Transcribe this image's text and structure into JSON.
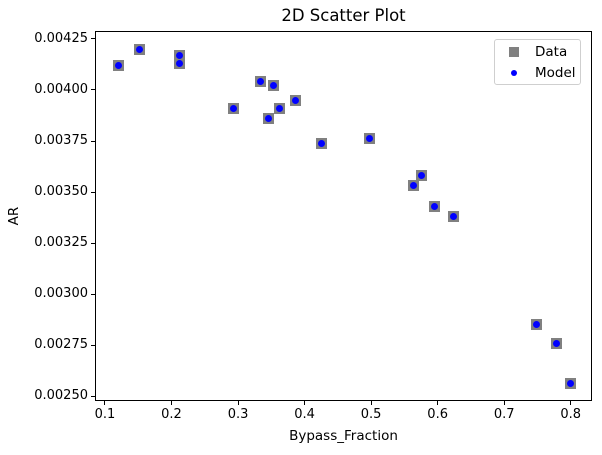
{
  "figure": {
    "title": "2D Scatter Plot",
    "xlabel": "Bypass_Fraction",
    "ylabel": "AR"
  },
  "legend": {
    "position": "upper right",
    "items": [
      {
        "label": "Data",
        "marker": "square",
        "color": "#808080"
      },
      {
        "label": "Model",
        "marker": "circle",
        "color": "#0000ff"
      }
    ]
  },
  "chart_data": {
    "type": "scatter",
    "title": "2D Scatter Plot",
    "xlabel": "Bypass_Fraction",
    "ylabel": "AR",
    "grid": false,
    "legend_position": "upper right",
    "xlim": [
      0.085,
      0.832
    ],
    "ylim": [
      0.002476,
      0.004289
    ],
    "xticks": [
      0.1,
      0.2,
      0.3,
      0.4,
      0.5,
      0.6,
      0.7,
      0.8
    ],
    "xtick_labels": [
      "0.1",
      "0.2",
      "0.3",
      "0.4",
      "0.5",
      "0.6",
      "0.7",
      "0.8"
    ],
    "yticks": [
      0.0025,
      0.00275,
      0.003,
      0.00325,
      0.0035,
      0.00375,
      0.004,
      0.00425
    ],
    "ytick_labels": [
      "0.00250",
      "0.00275",
      "0.00300",
      "0.00325",
      "0.00350",
      "0.00375",
      "0.00400",
      "0.00425"
    ],
    "series": [
      {
        "name": "Data",
        "marker": "square",
        "color": "#808080",
        "size": 11,
        "points": [
          [
            0.121,
            0.00412
          ],
          [
            0.152,
            0.0042
          ],
          [
            0.212,
            0.00417
          ],
          [
            0.212,
            0.00413
          ],
          [
            0.293,
            0.00391
          ],
          [
            0.334,
            0.00404
          ],
          [
            0.346,
            0.00386
          ],
          [
            0.354,
            0.00402
          ],
          [
            0.362,
            0.00391
          ],
          [
            0.386,
            0.00395
          ],
          [
            0.425,
            0.00374
          ],
          [
            0.497,
            0.00376
          ],
          [
            0.564,
            0.00353
          ],
          [
            0.576,
            0.00358
          ],
          [
            0.596,
            0.00343
          ],
          [
            0.624,
            0.00338
          ],
          [
            0.748,
            0.00285
          ],
          [
            0.779,
            0.00276
          ],
          [
            0.8,
            0.00256
          ]
        ]
      },
      {
        "name": "Model",
        "marker": "circle",
        "color": "#0000ff",
        "size": 7,
        "points": [
          [
            0.121,
            0.00412
          ],
          [
            0.152,
            0.0042
          ],
          [
            0.212,
            0.00417
          ],
          [
            0.212,
            0.00413
          ],
          [
            0.293,
            0.00391
          ],
          [
            0.334,
            0.00404
          ],
          [
            0.346,
            0.00386
          ],
          [
            0.354,
            0.00402
          ],
          [
            0.362,
            0.00391
          ],
          [
            0.386,
            0.00395
          ],
          [
            0.425,
            0.00374
          ],
          [
            0.497,
            0.00376
          ],
          [
            0.564,
            0.00353
          ],
          [
            0.576,
            0.00358
          ],
          [
            0.596,
            0.00343
          ],
          [
            0.624,
            0.00338
          ],
          [
            0.748,
            0.00285
          ],
          [
            0.779,
            0.00276
          ],
          [
            0.8,
            0.00256
          ]
        ]
      }
    ]
  }
}
